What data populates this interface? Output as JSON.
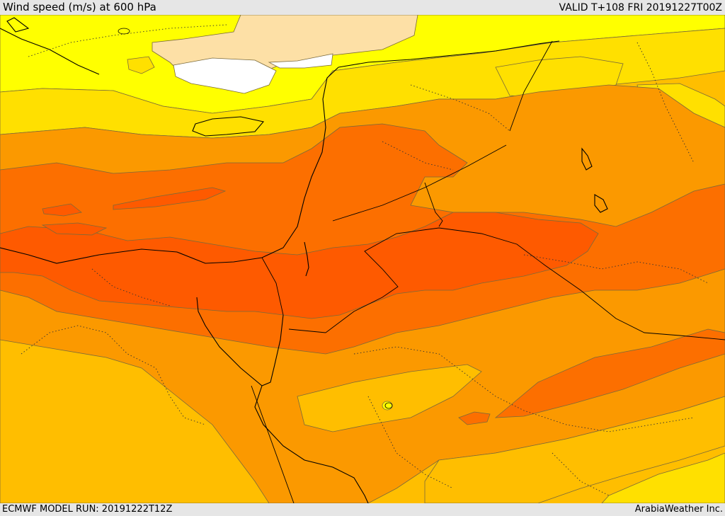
{
  "header": {
    "title": "Wind speed (m/s) at 600 hPa",
    "valid": "VALID T+108 FRI 20191227T00Z"
  },
  "footer": {
    "model_run": "ECMWF MODEL RUN: 20191222T12Z",
    "brand": "ArabiaWeather Inc."
  },
  "palette": {
    "pale_band": "#fde0a6",
    "white_band": "#ffffff",
    "yellow_band": "#ffff00",
    "gold_band": "#ffe000",
    "amber_band": "#ffbe00",
    "orange_band": "#fb9900",
    "deep_orange_band": "#fc6f00",
    "red_orange_band": "#fe5a00"
  }
}
